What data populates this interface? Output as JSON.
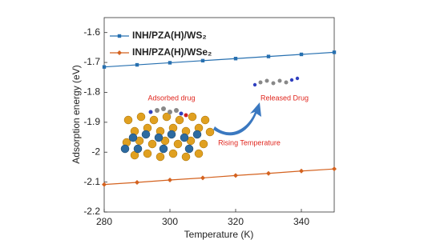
{
  "chart_data": {
    "type": "line",
    "x_label": "Temperature (K)",
    "y_label": "Adsorption energy (eV)",
    "x": [
      280,
      290,
      300,
      310,
      320,
      330,
      340,
      350
    ],
    "series": [
      {
        "name": "INH/PZA(H)/WS₂",
        "color": "#2770b0",
        "marker": "square",
        "values": [
          -1.715,
          -1.708,
          -1.701,
          -1.694,
          -1.687,
          -1.68,
          -1.673,
          -1.666
        ]
      },
      {
        "name": "INH/PZA(H)/WSe₂",
        "color": "#d4621f",
        "marker": "diamond",
        "values": [
          -2.108,
          -2.101,
          -2.093,
          -2.086,
          -2.078,
          -2.071,
          -2.063,
          -2.056
        ]
      }
    ],
    "xlim": [
      280,
      350
    ],
    "xticks": [
      280,
      300,
      320,
      340
    ],
    "ylim": [
      -2.2,
      -1.55
    ],
    "yticks": [
      -2.2,
      -2.1,
      -2,
      -1.9,
      -1.8,
      -1.7,
      -1.6
    ],
    "annotations": [
      "Adsorbed drug",
      "Released Drug",
      "Rising Temperature"
    ]
  }
}
